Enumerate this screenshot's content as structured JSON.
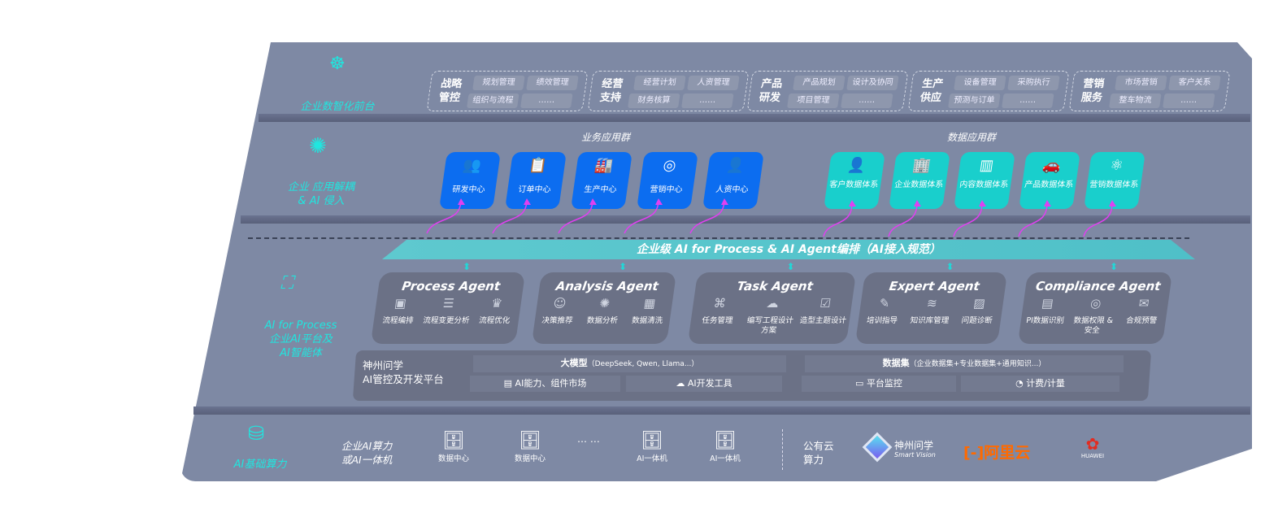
{
  "layers": {
    "front": "企业数智化前台",
    "decouple": [
      "企业 应用解耦",
      "& AI 侵入"
    ],
    "ai": [
      "AI for Process",
      "企业AI平台及",
      "AI智能体"
    ],
    "compute": "AI基础算力"
  },
  "front_groups": [
    {
      "title": [
        "战略",
        "管控"
      ],
      "chips": [
        "规划管理",
        "绩效管理",
        "组织与流程",
        "……"
      ]
    },
    {
      "title": [
        "经营",
        "支持"
      ],
      "chips": [
        "经营计划",
        "人资管理",
        "财务核算",
        "……"
      ]
    },
    {
      "title": [
        "产品",
        "研发"
      ],
      "chips": [
        "产品规划",
        "设计及协同",
        "项目管理",
        "……"
      ]
    },
    {
      "title": [
        "生产",
        "供应"
      ],
      "chips": [
        "设备管理",
        "采购执行",
        "预测与订单",
        "……"
      ]
    },
    {
      "title": [
        "营销",
        "服务"
      ],
      "chips": [
        "市场营销",
        "客户关系",
        "整车物流",
        "……"
      ]
    }
  ],
  "business_apps": {
    "title": "业务应用群",
    "items": [
      "研发中心",
      "订单中心",
      "生产中心",
      "营销中心",
      "人资中心"
    ],
    "color": "#0c6df0"
  },
  "data_apps": {
    "title": "数据应用群",
    "items": [
      "客户数据体系",
      "企业数据体系",
      "内容数据体系",
      "产品数据体系",
      "营销数据体系"
    ],
    "color": "#19cfcc"
  },
  "orchestration": "企业级 AI for Process & AI Agent编排（AI接入规范）",
  "agents": [
    {
      "name": "Process Agent",
      "items": [
        "流程编排",
        "流程变更分析",
        "流程优化"
      ]
    },
    {
      "name": "Analysis Agent",
      "items": [
        "决策推荐",
        "数据分析",
        "数据清洗"
      ]
    },
    {
      "name": "Task Agent",
      "items": [
        "任务管理",
        "编写工程设计方案",
        "造型主题设计"
      ]
    },
    {
      "name": "Expert Agent",
      "items": [
        "培训指导",
        "知识库管理",
        "问题诊断"
      ]
    },
    {
      "name": "Compliance Agent",
      "items": [
        "PI数据识别",
        "数据权限 & 安全",
        "合规预警"
      ]
    }
  ],
  "platform": {
    "title": [
      "神州问学",
      "AI管控及开发平台"
    ],
    "llm": "大模型",
    "llm_note": "（DeepSeek, Qwen, Llama...）",
    "dataset": "数据集",
    "dataset_note": "（企业数据集+专业数据集+通用知识...）",
    "tools": [
      "AI能力、组件市场",
      "AI开发工具",
      "平台监控",
      "计费/计量"
    ]
  },
  "compute": {
    "enterprise": [
      "企业AI算力",
      "或AI一体机"
    ],
    "nodes": [
      "数据中心",
      "数据中心",
      "AI一体机",
      "AI一体机"
    ],
    "ellipsis": "… …",
    "public": [
      "公有云",
      "算力"
    ],
    "vendors": {
      "shenzhou": "神州问学",
      "shenzhou_en": "Smart Vision",
      "aliyun": "阿里云",
      "huawei": "HUAWEI"
    }
  },
  "colors": {
    "panel": "#7e89a4",
    "accent": "#20e6df",
    "arrow": "#e040f0",
    "aliyun": "#ff6a00",
    "huawei": "#e32b20"
  }
}
